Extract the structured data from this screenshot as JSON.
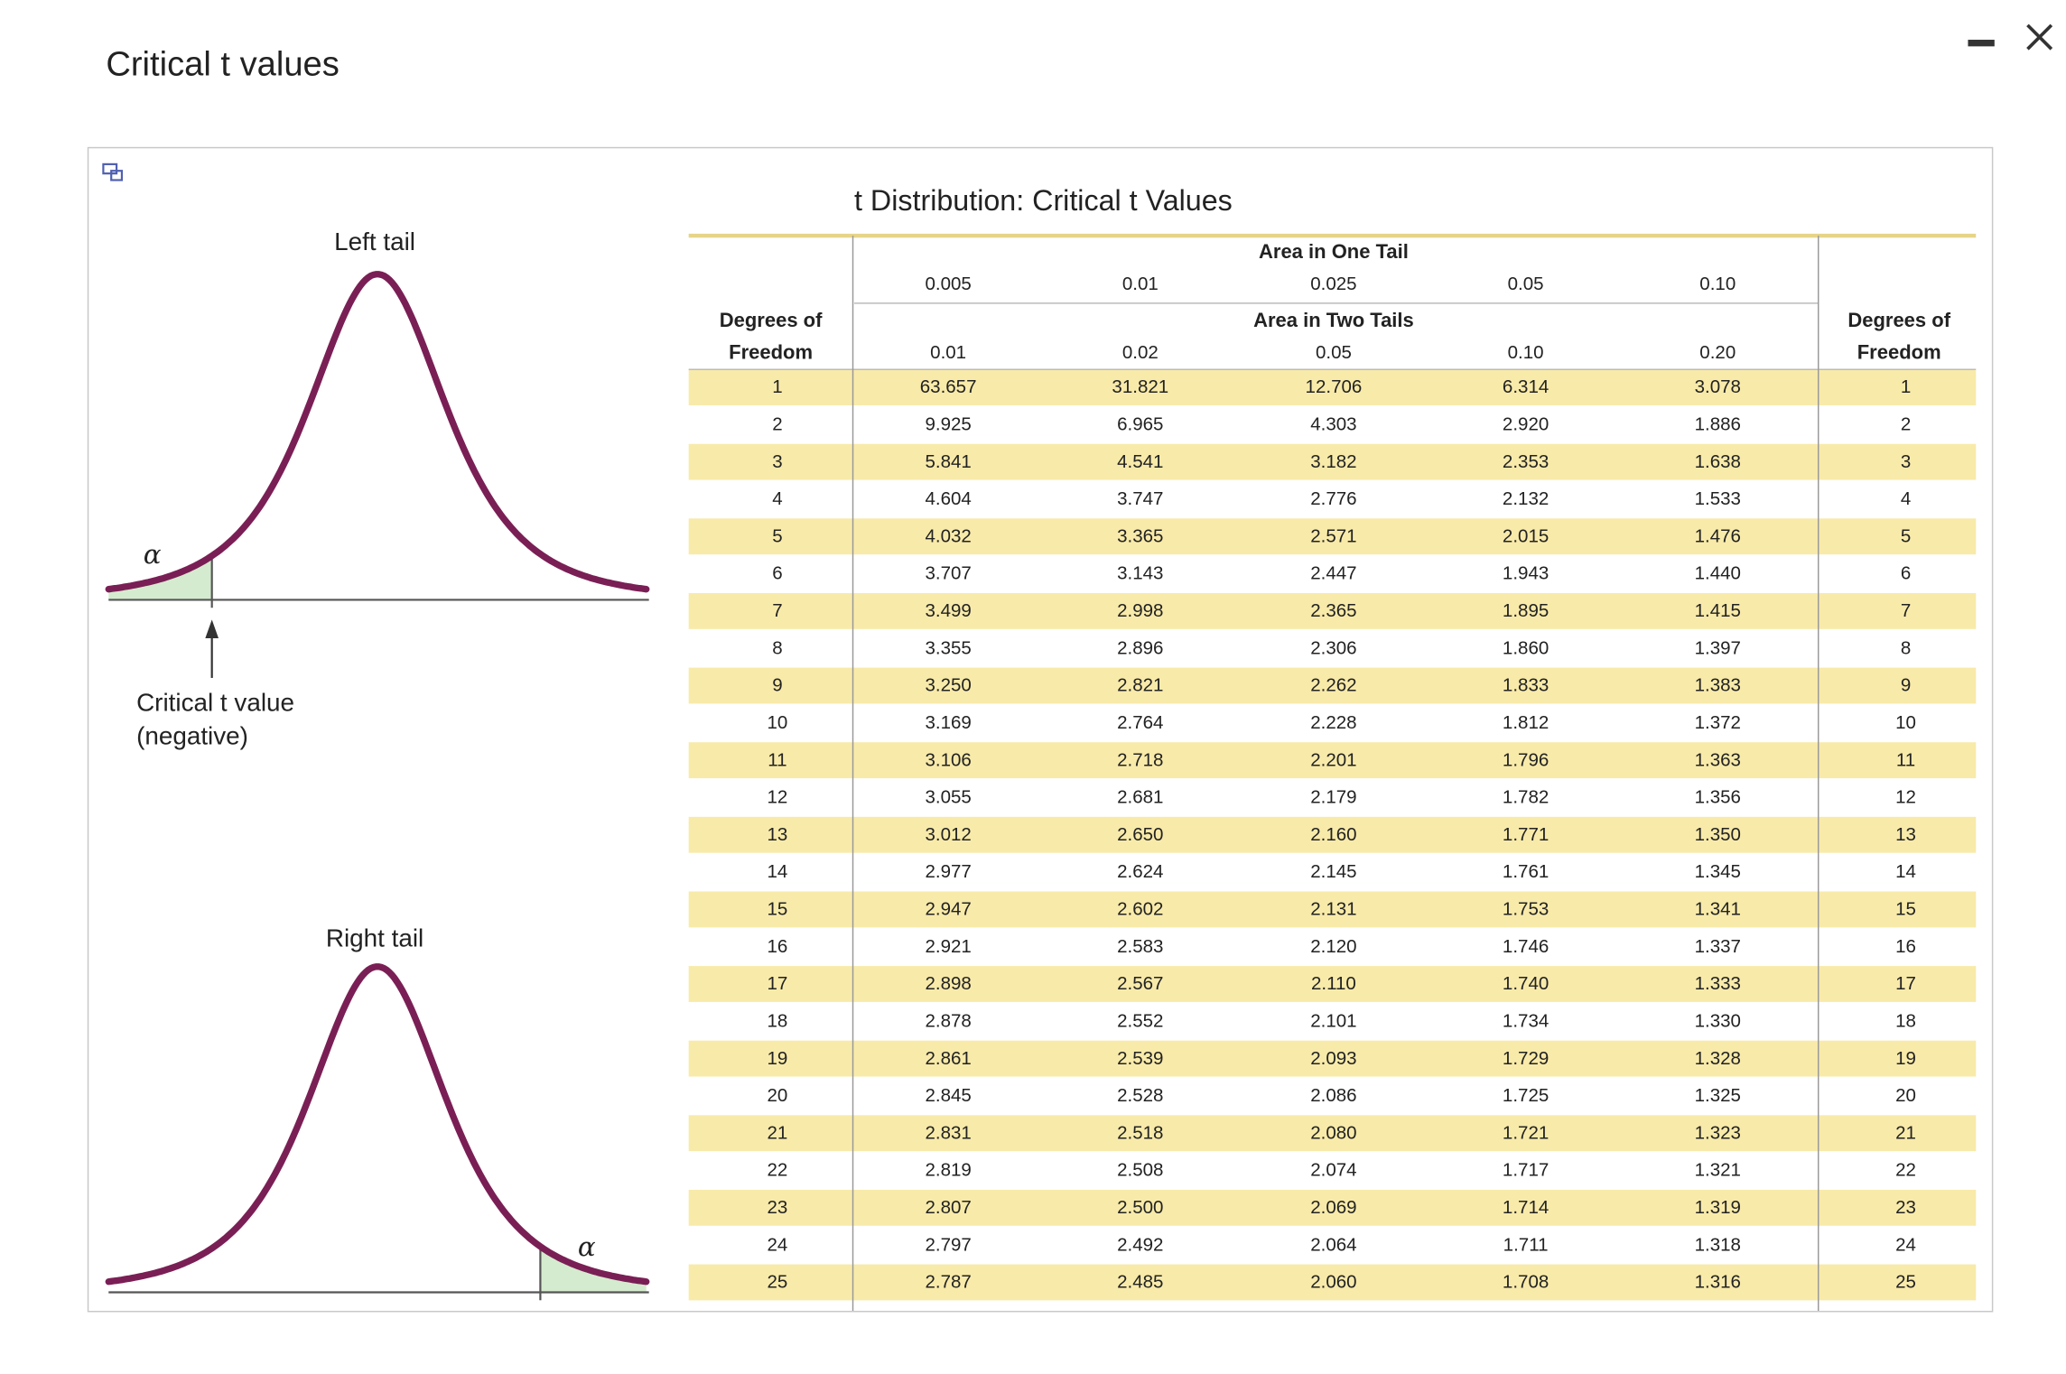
{
  "window": {
    "title": "Critical t values"
  },
  "diagrams": {
    "left_tail": {
      "title": "Left tail",
      "alpha": "α",
      "caption_line1": "Critical t value",
      "caption_line2": "(negative)"
    },
    "right_tail": {
      "title": "Right tail",
      "alpha": "α"
    }
  },
  "table": {
    "title": "t Distribution: Critical t Values",
    "one_tail_label": "Area in One Tail",
    "one_tail": [
      "0.005",
      "0.01",
      "0.025",
      "0.05",
      "0.10"
    ],
    "two_tails_label": "Area in Two Tails",
    "two_tails": [
      "0.01",
      "0.02",
      "0.05",
      "0.10",
      "0.20"
    ],
    "df_label_line1": "Degrees of",
    "df_label_line2": "Freedom",
    "rows": [
      [
        "1",
        "63.657",
        "31.821",
        "12.706",
        "6.314",
        "3.078"
      ],
      [
        "2",
        "9.925",
        "6.965",
        "4.303",
        "2.920",
        "1.886"
      ],
      [
        "3",
        "5.841",
        "4.541",
        "3.182",
        "2.353",
        "1.638"
      ],
      [
        "4",
        "4.604",
        "3.747",
        "2.776",
        "2.132",
        "1.533"
      ],
      [
        "5",
        "4.032",
        "3.365",
        "2.571",
        "2.015",
        "1.476"
      ],
      [
        "6",
        "3.707",
        "3.143",
        "2.447",
        "1.943",
        "1.440"
      ],
      [
        "7",
        "3.499",
        "2.998",
        "2.365",
        "1.895",
        "1.415"
      ],
      [
        "8",
        "3.355",
        "2.896",
        "2.306",
        "1.860",
        "1.397"
      ],
      [
        "9",
        "3.250",
        "2.821",
        "2.262",
        "1.833",
        "1.383"
      ],
      [
        "10",
        "3.169",
        "2.764",
        "2.228",
        "1.812",
        "1.372"
      ],
      [
        "11",
        "3.106",
        "2.718",
        "2.201",
        "1.796",
        "1.363"
      ],
      [
        "12",
        "3.055",
        "2.681",
        "2.179",
        "1.782",
        "1.356"
      ],
      [
        "13",
        "3.012",
        "2.650",
        "2.160",
        "1.771",
        "1.350"
      ],
      [
        "14",
        "2.977",
        "2.624",
        "2.145",
        "1.761",
        "1.345"
      ],
      [
        "15",
        "2.947",
        "2.602",
        "2.131",
        "1.753",
        "1.341"
      ],
      [
        "16",
        "2.921",
        "2.583",
        "2.120",
        "1.746",
        "1.337"
      ],
      [
        "17",
        "2.898",
        "2.567",
        "2.110",
        "1.740",
        "1.333"
      ],
      [
        "18",
        "2.878",
        "2.552",
        "2.101",
        "1.734",
        "1.330"
      ],
      [
        "19",
        "2.861",
        "2.539",
        "2.093",
        "1.729",
        "1.328"
      ],
      [
        "20",
        "2.845",
        "2.528",
        "2.086",
        "1.725",
        "1.325"
      ],
      [
        "21",
        "2.831",
        "2.518",
        "2.080",
        "1.721",
        "1.323"
      ],
      [
        "22",
        "2.819",
        "2.508",
        "2.074",
        "1.717",
        "1.321"
      ],
      [
        "23",
        "2.807",
        "2.500",
        "2.069",
        "1.714",
        "1.319"
      ],
      [
        "24",
        "2.797",
        "2.492",
        "2.064",
        "1.711",
        "1.318"
      ],
      [
        "25",
        "2.787",
        "2.485",
        "2.060",
        "1.708",
        "1.316"
      ]
    ]
  }
}
